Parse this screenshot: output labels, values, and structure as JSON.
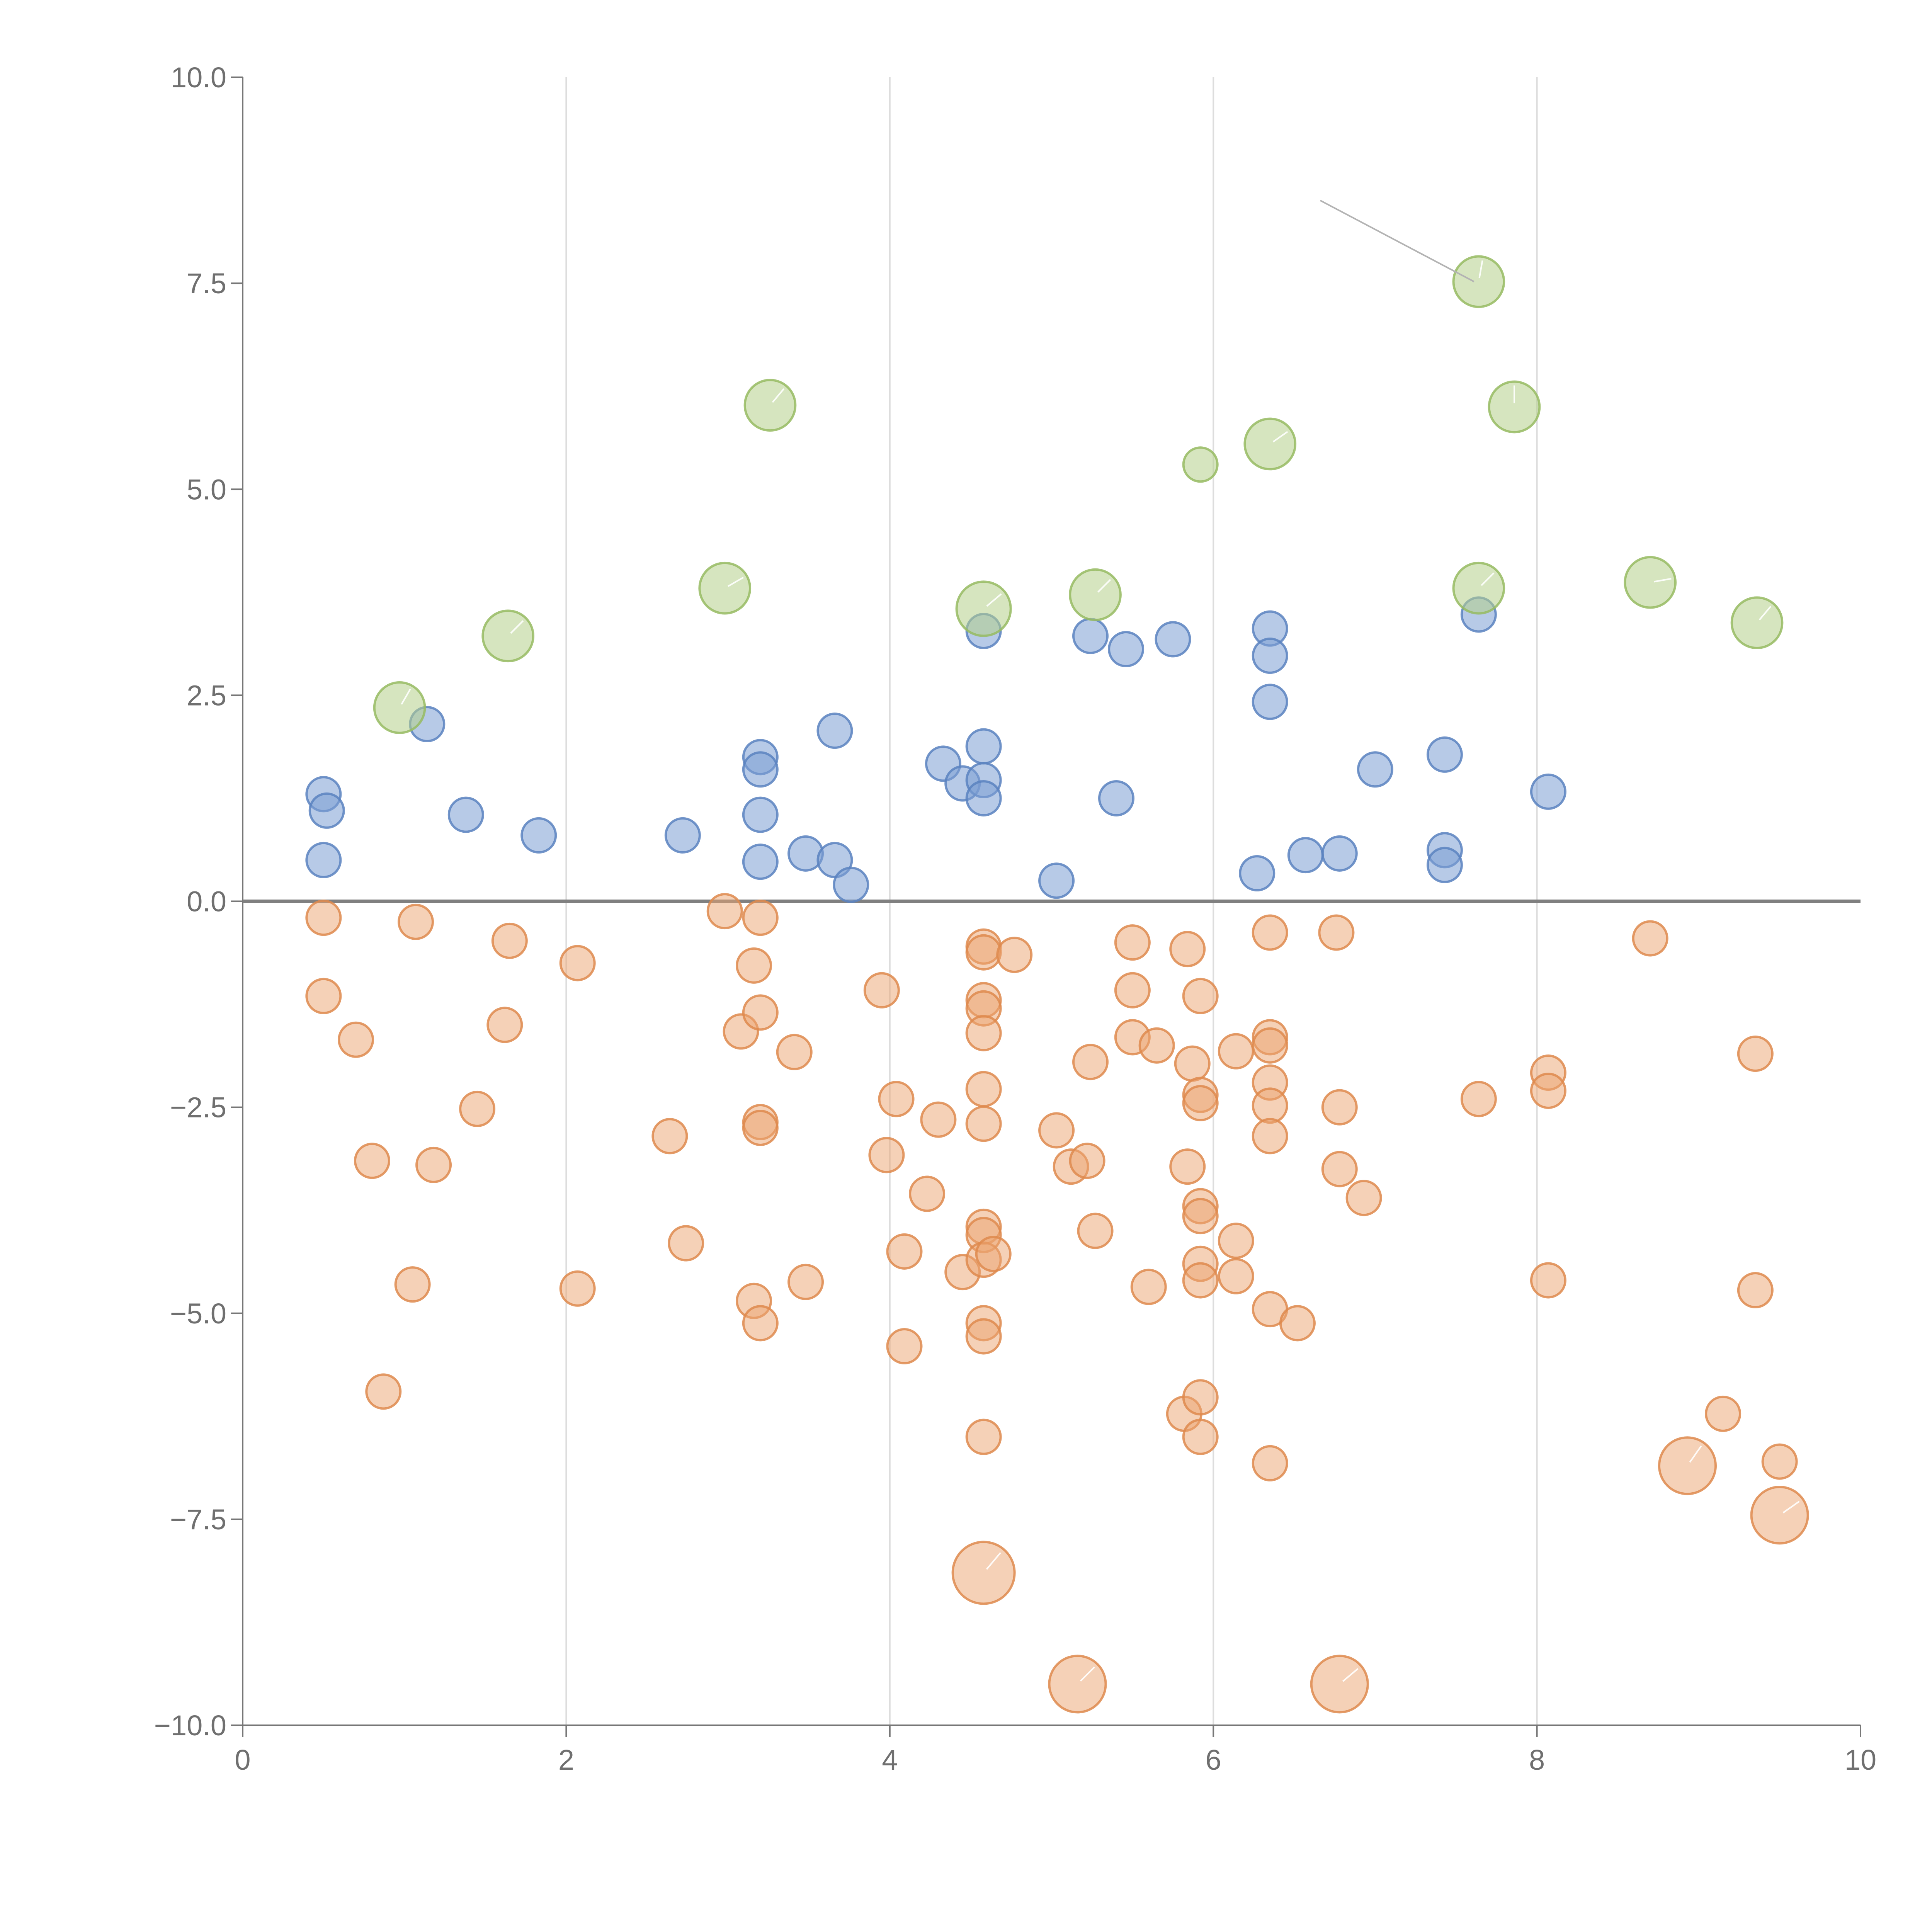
{
  "chart_data": {
    "type": "scatter",
    "title": "",
    "xlabel": "",
    "ylabel": "",
    "xlim": [
      0,
      10
    ],
    "ylim": [
      -10,
      10
    ],
    "x_ticks": [
      0,
      2,
      4,
      6,
      8,
      10
    ],
    "x_tick_labels": [
      "0",
      "2",
      "4",
      "6",
      "8",
      "10"
    ],
    "y_ticks": [
      10,
      7.5,
      5,
      2.5,
      0,
      -2.5,
      -5,
      -7.5,
      -10
    ],
    "y_tick_labels": [
      "10.0",
      "7.5",
      "5.0",
      "2.5",
      "0.0",
      "−2.5",
      "−5.0",
      "−7.5",
      "−10.0"
    ],
    "vertical_grid": [
      2,
      4,
      6,
      8
    ],
    "zero_line": 0,
    "colors": {
      "blue_fill": "#7b9fd3",
      "blue_stroke": "#5b82c0",
      "orange_fill": "#eba46f",
      "orange_stroke": "#de8a4d",
      "green_fill": "#b5d08a",
      "green_stroke": "#96bb62",
      "leader_gray": "#b3b3b3",
      "leader_white": "#ffffff"
    },
    "series": [
      {
        "name": "blue",
        "points": [
          [
            0.5,
            1.3,
            1
          ],
          [
            0.52,
            1.1,
            1
          ],
          [
            0.5,
            0.5,
            1
          ],
          [
            1.14,
            2.15,
            1
          ],
          [
            1.38,
            1.05,
            1
          ],
          [
            1.83,
            0.8,
            1
          ],
          [
            2.72,
            0.8,
            1
          ],
          [
            3.2,
            1.75,
            1
          ],
          [
            3.2,
            1.6,
            1
          ],
          [
            3.2,
            1.05,
            1
          ],
          [
            3.2,
            0.48,
            1
          ],
          [
            3.48,
            0.58,
            1
          ],
          [
            3.66,
            2.07,
            1
          ],
          [
            3.66,
            0.5,
            1
          ],
          [
            3.76,
            0.2,
            1
          ],
          [
            4.33,
            1.67,
            1
          ],
          [
            4.45,
            1.43,
            1
          ],
          [
            4.58,
            1.88,
            1
          ],
          [
            4.58,
            1.47,
            1
          ],
          [
            4.58,
            1.25,
            1
          ],
          [
            4.58,
            3.28,
            1
          ],
          [
            5.03,
            0.25,
            1
          ],
          [
            5.24,
            3.22,
            1
          ],
          [
            5.46,
            3.06,
            1
          ],
          [
            5.4,
            1.25,
            1
          ],
          [
            5.75,
            3.18,
            1
          ],
          [
            6.27,
            0.34,
            1
          ],
          [
            6.35,
            3.31,
            1
          ],
          [
            6.35,
            2.98,
            1
          ],
          [
            6.35,
            2.42,
            1
          ],
          [
            6.57,
            0.56,
            1
          ],
          [
            6.78,
            0.58,
            1
          ],
          [
            7.0,
            1.6,
            1
          ],
          [
            7.43,
            1.78,
            1
          ],
          [
            7.43,
            0.62,
            1
          ],
          [
            7.43,
            0.44,
            1
          ],
          [
            7.64,
            3.48,
            1
          ],
          [
            8.07,
            1.33,
            1
          ]
        ]
      },
      {
        "name": "orange",
        "points": [
          [
            0.5,
            -0.2,
            1
          ],
          [
            0.5,
            -1.15,
            1
          ],
          [
            0.7,
            -1.68,
            1
          ],
          [
            0.8,
            -3.15,
            1
          ],
          [
            0.87,
            -5.95,
            1
          ],
          [
            1.07,
            -0.25,
            1
          ],
          [
            1.05,
            -4.65,
            1
          ],
          [
            1.18,
            -3.2,
            1
          ],
          [
            1.45,
            -2.52,
            1
          ],
          [
            1.62,
            -1.5,
            1
          ],
          [
            1.65,
            -0.48,
            1
          ],
          [
            2.07,
            -0.75,
            1
          ],
          [
            2.07,
            -4.7,
            1
          ],
          [
            2.64,
            -2.85,
            1
          ],
          [
            2.74,
            -4.15,
            1
          ],
          [
            2.98,
            -0.12,
            1
          ],
          [
            3.08,
            -1.58,
            1
          ],
          [
            3.16,
            -0.78,
            1
          ],
          [
            3.16,
            -4.85,
            1
          ],
          [
            3.2,
            -0.2,
            1
          ],
          [
            3.2,
            -1.35,
            1
          ],
          [
            3.2,
            -2.68,
            1
          ],
          [
            3.2,
            -2.75,
            1
          ],
          [
            3.2,
            -5.12,
            1
          ],
          [
            3.41,
            -1.83,
            1
          ],
          [
            3.48,
            -4.62,
            1
          ],
          [
            3.95,
            -1.08,
            1
          ],
          [
            3.98,
            -3.08,
            1
          ],
          [
            4.04,
            -2.4,
            1
          ],
          [
            4.09,
            -4.25,
            1
          ],
          [
            4.09,
            -5.4,
            1
          ],
          [
            4.23,
            -3.55,
            1
          ],
          [
            4.3,
            -2.65,
            1
          ],
          [
            4.45,
            -4.5,
            1
          ],
          [
            4.58,
            -0.55,
            1
          ],
          [
            4.58,
            -0.62,
            1
          ],
          [
            4.58,
            -1.2,
            1
          ],
          [
            4.58,
            -1.3,
            1
          ],
          [
            4.58,
            -1.6,
            1
          ],
          [
            4.58,
            -2.28,
            1
          ],
          [
            4.58,
            -2.7,
            1
          ],
          [
            4.58,
            -3.95,
            1
          ],
          [
            4.58,
            -4.05,
            1
          ],
          [
            4.58,
            -4.35,
            1
          ],
          [
            4.58,
            -5.12,
            1
          ],
          [
            4.58,
            -5.28,
            1
          ],
          [
            4.58,
            -6.5,
            1
          ],
          [
            4.77,
            -0.65,
            1
          ],
          [
            4.64,
            -4.28,
            1
          ],
          [
            5.03,
            -2.78,
            1
          ],
          [
            5.12,
            -3.22,
            1
          ],
          [
            5.22,
            -3.15,
            1
          ],
          [
            5.24,
            -1.95,
            1
          ],
          [
            5.27,
            -4.0,
            1
          ],
          [
            5.5,
            -0.5,
            1
          ],
          [
            5.5,
            -1.08,
            1
          ],
          [
            5.5,
            -1.65,
            1
          ],
          [
            5.6,
            -4.68,
            1
          ],
          [
            5.65,
            -1.75,
            1
          ],
          [
            5.82,
            -6.22,
            1
          ],
          [
            5.84,
            -0.58,
            1
          ],
          [
            5.84,
            -3.22,
            1
          ],
          [
            5.87,
            -1.97,
            1
          ],
          [
            5.92,
            -1.15,
            1
          ],
          [
            5.92,
            -2.35,
            1
          ],
          [
            5.92,
            -2.45,
            1
          ],
          [
            5.92,
            -3.7,
            1
          ],
          [
            5.92,
            -3.82,
            1
          ],
          [
            5.92,
            -4.4,
            1
          ],
          [
            5.92,
            -4.6,
            1
          ],
          [
            5.92,
            -6.02,
            1
          ],
          [
            5.92,
            -6.5,
            1
          ],
          [
            6.14,
            -1.82,
            1
          ],
          [
            6.14,
            -4.12,
            1
          ],
          [
            6.14,
            -4.55,
            1
          ],
          [
            6.35,
            -0.38,
            1
          ],
          [
            6.35,
            -1.65,
            1
          ],
          [
            6.35,
            -1.75,
            1
          ],
          [
            6.35,
            -2.2,
            1
          ],
          [
            6.35,
            -2.48,
            1
          ],
          [
            6.35,
            -2.85,
            1
          ],
          [
            6.35,
            -4.95,
            1
          ],
          [
            6.35,
            -6.82,
            1
          ],
          [
            6.52,
            -5.12,
            1
          ],
          [
            6.76,
            -0.38,
            1
          ],
          [
            6.78,
            -2.5,
            1
          ],
          [
            6.78,
            -3.25,
            1
          ],
          [
            6.93,
            -3.6,
            1
          ],
          [
            7.64,
            -2.4,
            1
          ],
          [
            8.07,
            -2.08,
            1
          ],
          [
            8.07,
            -2.3,
            1
          ],
          [
            8.07,
            -4.6,
            1
          ],
          [
            8.7,
            -0.45,
            1
          ],
          [
            9.15,
            -6.22,
            1
          ],
          [
            9.35,
            -1.85,
            1
          ],
          [
            9.35,
            -4.72,
            1
          ],
          [
            9.5,
            -6.8,
            1
          ],
          [
            4.58,
            -8.15,
            3
          ],
          [
            5.16,
            -9.5,
            2.5
          ],
          [
            6.78,
            -9.5,
            2.5
          ],
          [
            8.93,
            -6.85,
            2.5
          ],
          [
            9.5,
            -7.45,
            2.5
          ]
        ]
      },
      {
        "name": "green",
        "points": [
          [
            0.97,
            2.35,
            2
          ],
          [
            1.64,
            3.22,
            2
          ],
          [
            2.98,
            3.8,
            2
          ],
          [
            3.26,
            6.02,
            2
          ],
          [
            4.58,
            3.55,
            2.3
          ],
          [
            5.27,
            3.72,
            2
          ],
          [
            5.92,
            5.3,
            1
          ],
          [
            6.35,
            5.55,
            2
          ],
          [
            7.64,
            7.52,
            2
          ],
          [
            7.86,
            6.0,
            2
          ],
          [
            7.64,
            3.8,
            2
          ],
          [
            8.7,
            3.87,
            2
          ],
          [
            9.36,
            3.38,
            2
          ]
        ]
      }
    ]
  }
}
